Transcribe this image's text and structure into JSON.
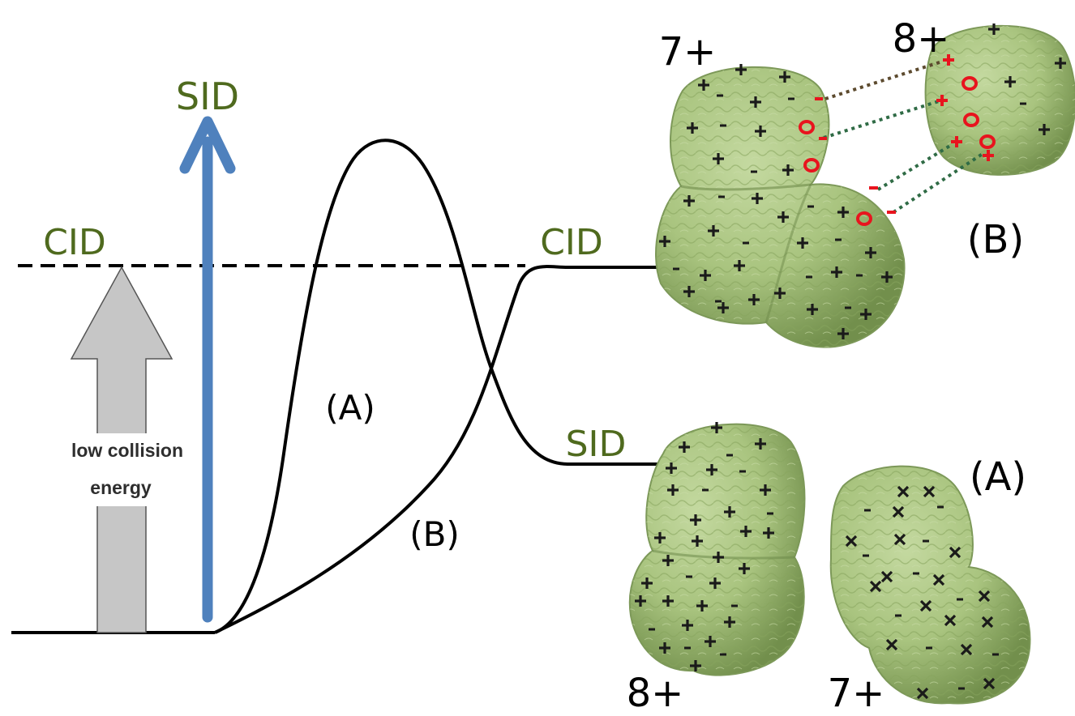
{
  "labels": {
    "sid_top": "SID",
    "cid_left": "CID",
    "cid_right": "CID",
    "sid_right": "SID",
    "curve_a": "(A)",
    "curve_b": "(B)",
    "arrow_line1": "low collision",
    "arrow_line2": "energy",
    "panel_b": "(B)",
    "panel_a": "(A)",
    "charge_b_left": "7+",
    "charge_b_right": "8+",
    "charge_a_left": "8+",
    "charge_a_right": "7+"
  },
  "colors": {
    "label_green": "#4f6a1e",
    "sid_arrow": "#4f81bd",
    "gray_arrow_fill": "#c6c6c6",
    "gray_arrow_stroke": "#555555",
    "protein_fill": "#a9c47f",
    "protein_shadow": "#6e8a4a",
    "contact_red": "#e8141e",
    "link_brown": "#5c4a2e",
    "link_green": "#2f6b45"
  }
}
